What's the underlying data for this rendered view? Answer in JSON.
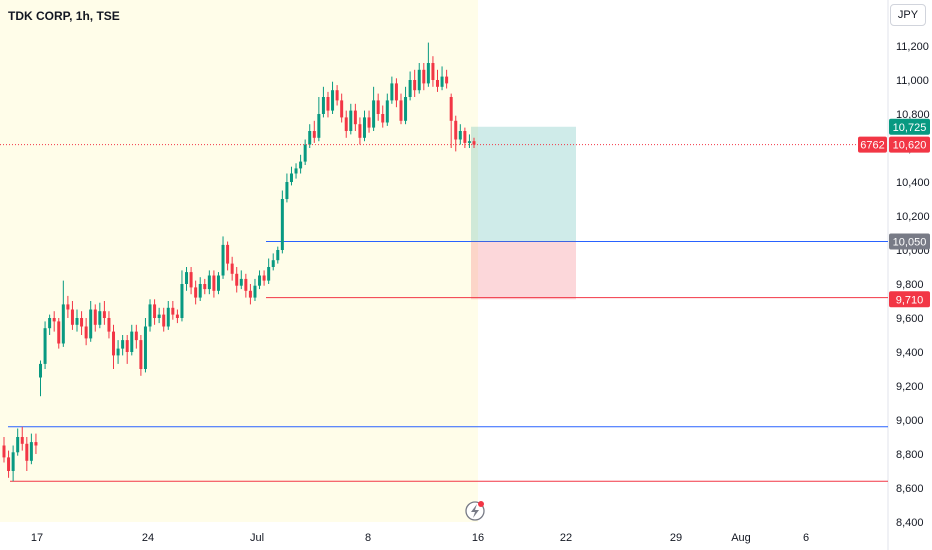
{
  "chart_data": {
    "type": "candlestick",
    "title": "TDK CORP, 1h, TSE",
    "currency": "JPY",
    "ylim": [
      8400,
      11300
    ],
    "y_ticks": [
      8400,
      8600,
      8800,
      9000,
      9200,
      9400,
      9600,
      9800,
      10000,
      10200,
      10400,
      10600,
      10800,
      11000,
      11200
    ],
    "y_tick_labels": [
      "8,400",
      "8,600",
      "8,800",
      "9,000",
      "9,200",
      "9,400",
      "9,600",
      "9,800",
      "10,000",
      "10,200",
      "10,400",
      "10,600",
      "10,800",
      "11,000",
      "11,200"
    ],
    "x_ticks": [
      "17",
      "24",
      "Jul",
      "8",
      "16",
      "22",
      "29",
      "Aug",
      "6"
    ],
    "highlight_region_color": "#fffde9",
    "up_color": "#089981",
    "down_color": "#f23645",
    "candles": [
      [
        8850,
        8780,
        8900,
        8750
      ],
      [
        8780,
        8700,
        8820,
        8660
      ],
      [
        8700,
        8810,
        8850,
        8640
      ],
      [
        8810,
        8900,
        8950,
        8790
      ],
      [
        8900,
        8860,
        8960,
        8820
      ],
      [
        8860,
        8760,
        8900,
        8700
      ],
      [
        8760,
        8870,
        8920,
        8740
      ],
      [
        8870,
        8850,
        8920,
        8800
      ],
      [
        9250,
        9330,
        9350,
        9140
      ],
      [
        9330,
        9540,
        9580,
        9300
      ],
      [
        9540,
        9600,
        9620,
        9500
      ],
      [
        9600,
        9580,
        9640,
        9520
      ],
      [
        9580,
        9450,
        9600,
        9420
      ],
      [
        9450,
        9680,
        9820,
        9430
      ],
      [
        9680,
        9650,
        9730,
        9600
      ],
      [
        9650,
        9560,
        9700,
        9530
      ],
      [
        9560,
        9600,
        9650,
        9520
      ],
      [
        9600,
        9550,
        9640,
        9500
      ],
      [
        9550,
        9480,
        9600,
        9440
      ],
      [
        9480,
        9650,
        9700,
        9460
      ],
      [
        9650,
        9560,
        9680,
        9520
      ],
      [
        9560,
        9640,
        9690,
        9540
      ],
      [
        9640,
        9600,
        9700,
        9560
      ],
      [
        9600,
        9520,
        9640,
        9480
      ],
      [
        9520,
        9380,
        9560,
        9300
      ],
      [
        9380,
        9420,
        9470,
        9330
      ],
      [
        9420,
        9470,
        9500,
        9380
      ],
      [
        9470,
        9400,
        9500,
        9330
      ],
      [
        9400,
        9520,
        9560,
        9380
      ],
      [
        9520,
        9470,
        9560,
        9420
      ],
      [
        9470,
        9300,
        9500,
        9260
      ],
      [
        9300,
        9550,
        9600,
        9280
      ],
      [
        9550,
        9680,
        9710,
        9520
      ],
      [
        9680,
        9600,
        9710,
        9560
      ],
      [
        9600,
        9620,
        9660,
        9570
      ],
      [
        9620,
        9550,
        9660,
        9520
      ],
      [
        9550,
        9660,
        9700,
        9530
      ],
      [
        9660,
        9620,
        9700,
        9590
      ],
      [
        9620,
        9600,
        9650,
        9570
      ],
      [
        9600,
        9800,
        9880,
        9580
      ],
      [
        9800,
        9870,
        9900,
        9760
      ],
      [
        9870,
        9780,
        9900,
        9740
      ],
      [
        9780,
        9720,
        9820,
        9680
      ],
      [
        9720,
        9800,
        9840,
        9700
      ],
      [
        9800,
        9770,
        9830,
        9740
      ],
      [
        9770,
        9850,
        9880,
        9740
      ],
      [
        9850,
        9760,
        9880,
        9720
      ],
      [
        9760,
        9850,
        9870,
        9740
      ],
      [
        9850,
        10030,
        10080,
        9830
      ],
      [
        10030,
        9920,
        10050,
        9880
      ],
      [
        9920,
        9860,
        9960,
        9820
      ],
      [
        9860,
        9790,
        9900,
        9750
      ],
      [
        9790,
        9830,
        9880,
        9770
      ],
      [
        9830,
        9760,
        9860,
        9720
      ],
      [
        9760,
        9720,
        9800,
        9680
      ],
      [
        9720,
        9790,
        9830,
        9700
      ],
      [
        9790,
        9850,
        9880,
        9770
      ],
      [
        9850,
        9820,
        9880,
        9790
      ],
      [
        9820,
        9900,
        9950,
        9800
      ],
      [
        9900,
        9940,
        9980,
        9880
      ],
      [
        9940,
        10000,
        10020,
        9920
      ],
      [
        10000,
        10300,
        10350,
        9980
      ],
      [
        10300,
        10400,
        10450,
        10280
      ],
      [
        10400,
        10450,
        10490,
        10380
      ],
      [
        10450,
        10480,
        10510,
        10420
      ],
      [
        10480,
        10520,
        10560,
        10450
      ],
      [
        10520,
        10620,
        10650,
        10500
      ],
      [
        10620,
        10700,
        10740,
        10600
      ],
      [
        10700,
        10660,
        10760,
        10630
      ],
      [
        10660,
        10800,
        10900,
        10640
      ],
      [
        10800,
        10900,
        10960,
        10780
      ],
      [
        10900,
        10820,
        10930,
        10780
      ],
      [
        10820,
        10940,
        10990,
        10800
      ],
      [
        10940,
        10880,
        10970,
        10850
      ],
      [
        10880,
        10780,
        10920,
        10750
      ],
      [
        10780,
        10700,
        10820,
        10660
      ],
      [
        10700,
        10820,
        10860,
        10680
      ],
      [
        10820,
        10740,
        10860,
        10700
      ],
      [
        10740,
        10660,
        10780,
        10620
      ],
      [
        10660,
        10780,
        10820,
        10640
      ],
      [
        10780,
        10720,
        10820,
        10690
      ],
      [
        10720,
        10880,
        10960,
        10700
      ],
      [
        10880,
        10800,
        10920,
        10760
      ],
      [
        10800,
        10750,
        10850,
        10720
      ],
      [
        10750,
        10880,
        10920,
        10730
      ],
      [
        10880,
        10980,
        11020,
        10860
      ],
      [
        10980,
        10880,
        11010,
        10840
      ],
      [
        10880,
        10760,
        10920,
        10740
      ],
      [
        10760,
        10900,
        10960,
        10740
      ],
      [
        10900,
        11000,
        11050,
        10880
      ],
      [
        11000,
        10940,
        11060,
        10900
      ],
      [
        10940,
        11060,
        11100,
        10920
      ],
      [
        11060,
        10980,
        11100,
        10940
      ],
      [
        10980,
        11100,
        11220,
        10960
      ],
      [
        11100,
        11000,
        11140,
        10960
      ],
      [
        11000,
        10960,
        11060,
        10930
      ],
      [
        10960,
        11020,
        11080,
        10940
      ],
      [
        11020,
        10980,
        11060,
        10950
      ],
      [
        10900,
        10760,
        10920,
        10600
      ],
      [
        10760,
        10650,
        10790,
        10580
      ],
      [
        10650,
        10700,
        10740,
        10620
      ],
      [
        10700,
        10630,
        10720,
        10600
      ],
      [
        10630,
        10640,
        10680,
        10600
      ],
      [
        10640,
        10620,
        10660,
        10600
      ]
    ],
    "horizontal_lines": [
      {
        "price": 8960,
        "color": "#2962ff"
      },
      {
        "price": 8640,
        "color": "#f23645"
      },
      {
        "price": 10050,
        "color": "#2962ff"
      },
      {
        "price": 9720,
        "color": "#f23645"
      }
    ],
    "price_line": {
      "price": 10620,
      "color": "#f23645"
    },
    "position": {
      "entry": 10050,
      "target": 10725,
      "stop": 9710,
      "profit_color": "#26a69a",
      "loss_color": "#f23645"
    },
    "tags": [
      {
        "price": 10725,
        "label": "10,725",
        "color": "#089981"
      },
      {
        "price": 10620,
        "label": "10,620",
        "color": "#f23645",
        "prefix": "6762"
      },
      {
        "price": 10050,
        "label": "10,050",
        "color": "#787b86"
      },
      {
        "price": 9710,
        "label": "9,710",
        "color": "#f23645"
      }
    ]
  }
}
